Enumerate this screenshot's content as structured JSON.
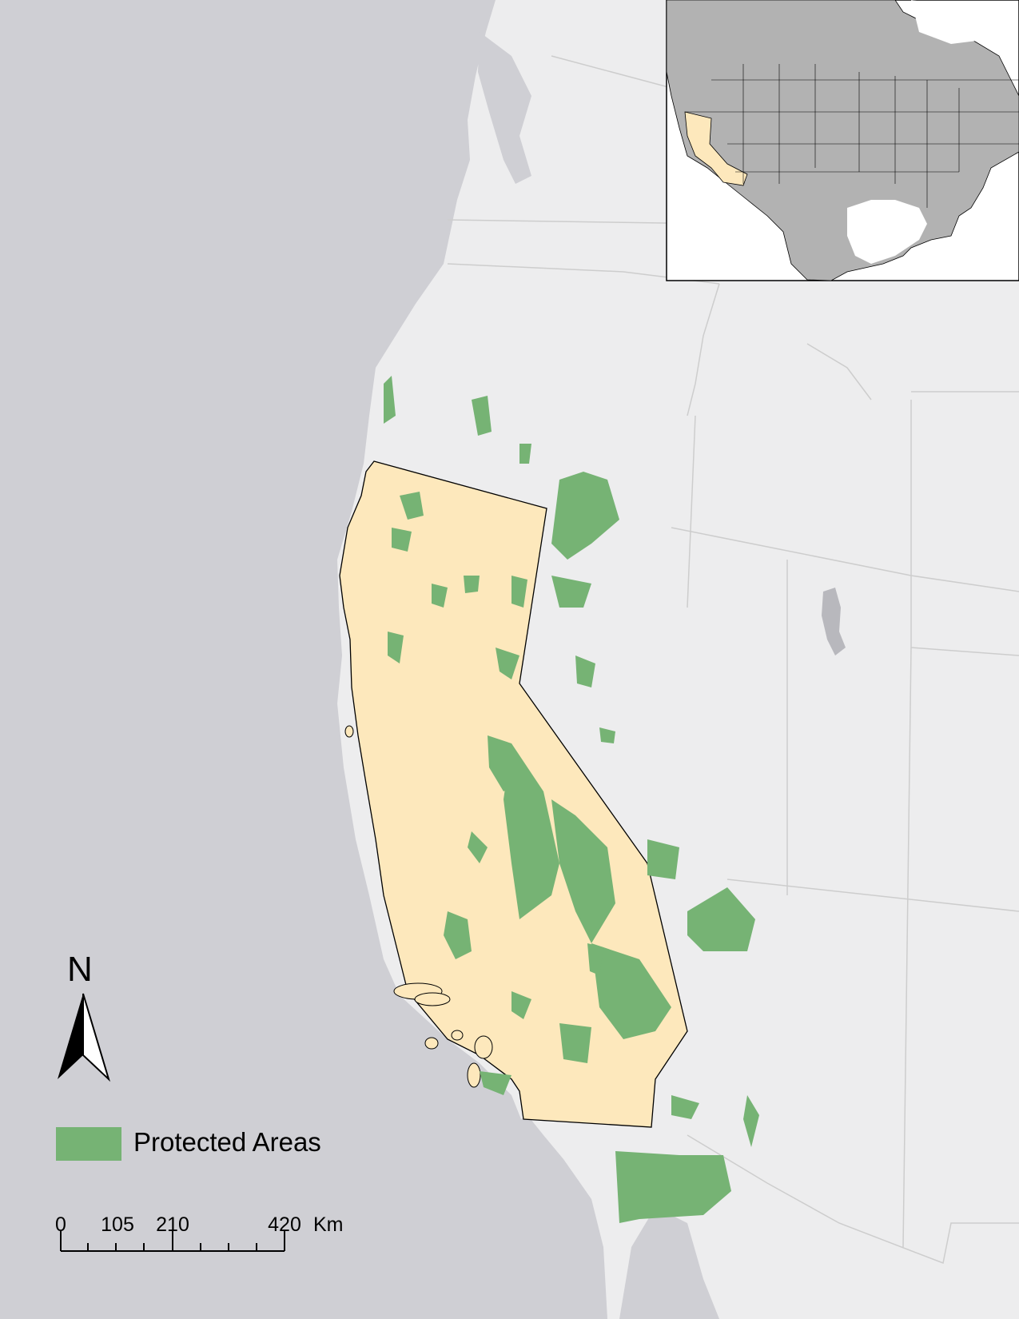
{
  "north_arrow": {
    "letter": "N"
  },
  "legend": {
    "items": [
      {
        "label": "Protected Areas",
        "color": "#76b374"
      }
    ]
  },
  "scale_bar": {
    "ticks": [
      "0",
      "105",
      "210",
      "420"
    ],
    "unit": "Km"
  },
  "colors": {
    "ocean": "#cfcfd4",
    "land": "#ededee",
    "highlight_state": "#fde8bc",
    "protected": "#76b374",
    "inset_land": "#b2b2b2",
    "inset_water": "#ffffff",
    "lake": "#b8b8bd"
  }
}
